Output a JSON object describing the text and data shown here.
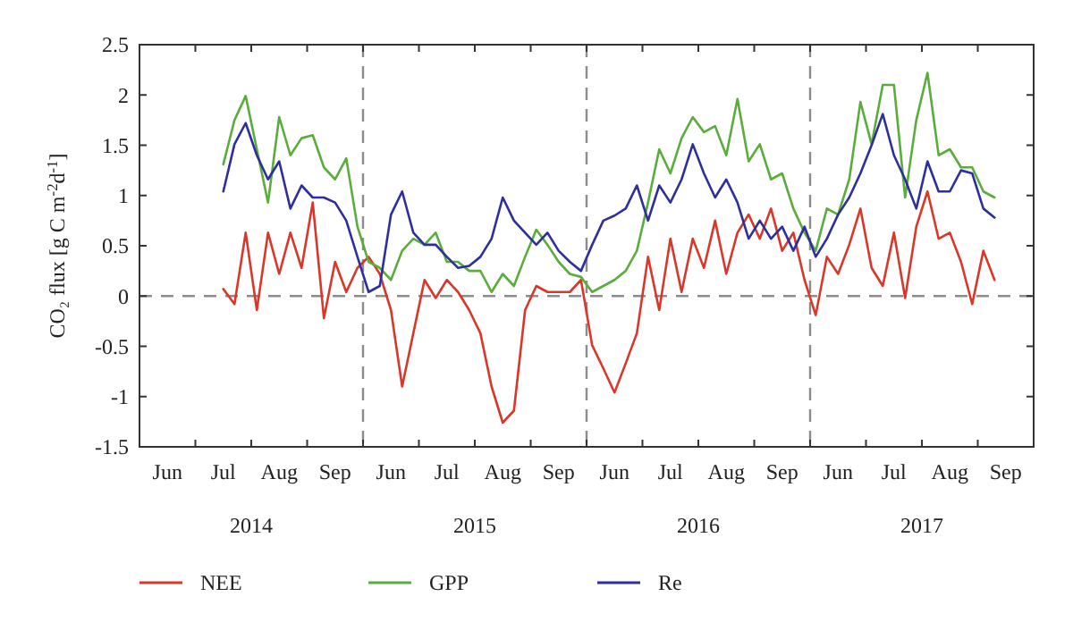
{
  "chart_data": {
    "type": "line",
    "ylabel": "CO₂ flux [g C m$^{-2}$d$^{-1}$]",
    "categories": [
      null,
      null,
      "Jun",
      null,
      null,
      null,
      null,
      "Jul",
      null,
      null,
      null,
      null,
      "Aug",
      null,
      null,
      null,
      null,
      "Sep",
      null,
      null,
      null,
      null,
      "Jun",
      null,
      null,
      null,
      null,
      "Jul",
      null,
      null,
      null,
      null,
      "Aug",
      null,
      null,
      null,
      null,
      "Sep",
      null,
      null,
      null,
      null,
      "Jun",
      null,
      null,
      null,
      null,
      "Jul",
      null,
      null,
      null,
      null,
      "Aug",
      null,
      null,
      null,
      null,
      "Sep",
      null,
      null,
      null,
      null,
      "Jun",
      null,
      null,
      null,
      null,
      "Jul",
      null,
      null,
      null,
      null,
      "Aug",
      null,
      null,
      null,
      null,
      "Sep",
      null,
      null
    ],
    "ylim": [
      -1.5,
      2.5
    ],
    "yticks": [
      -1.5,
      -1,
      -0.5,
      0,
      0.5,
      1,
      1.5,
      2,
      2.5
    ],
    "annotations": [
      "2014",
      "2015",
      "2016",
      "2017"
    ],
    "ref_lines": [
      {
        "axis": "y",
        "value": 0,
        "color": "#8c8c8c",
        "line_style": "dashed"
      }
    ],
    "legend": "bottom",
    "line_style": "solid",
    "series": [
      {
        "name": "NEE",
        "color": "#d8372a",
        "values": [
          null,
          null,
          null,
          null,
          null,
          null,
          null,
          0.07,
          -0.08,
          0.63,
          -0.14,
          0.63,
          0.22,
          0.63,
          0.28,
          0.93,
          -0.22,
          0.34,
          0.04,
          0.28,
          0.39,
          0.22,
          -0.14,
          -0.9,
          -0.37,
          0.16,
          -0.02,
          0.16,
          0.04,
          -0.14,
          -0.37,
          -0.9,
          -1.26,
          -1.14,
          -0.14,
          0.1,
          0.04,
          0.04,
          0.04,
          0.16,
          -0.49,
          -0.72,
          -0.96,
          -0.67,
          -0.37,
          0.39,
          -0.14,
          0.57,
          0.04,
          0.57,
          0.28,
          0.75,
          0.22,
          0.63,
          0.81,
          0.57,
          0.87,
          0.45,
          0.63,
          0.16,
          -0.19,
          0.39,
          0.22,
          0.51,
          0.87,
          0.28,
          0.1,
          0.63,
          -0.02,
          0.69,
          1.04,
          0.57,
          0.63,
          0.34,
          -0.08,
          0.45,
          0.16,
          null,
          null,
          null
        ]
      },
      {
        "name": "GPP",
        "color": "#5aad3c",
        "values": [
          null,
          null,
          null,
          null,
          null,
          null,
          null,
          1.31,
          1.75,
          1.99,
          1.46,
          0.93,
          1.78,
          1.4,
          1.57,
          1.6,
          1.28,
          1.16,
          1.37,
          0.69,
          0.34,
          0.28,
          0.16,
          0.45,
          0.57,
          0.51,
          0.63,
          0.34,
          0.34,
          0.25,
          0.25,
          0.04,
          0.22,
          0.1,
          0.39,
          0.66,
          0.51,
          0.34,
          0.22,
          0.19,
          0.04,
          0.1,
          0.16,
          0.25,
          0.45,
          0.93,
          1.46,
          1.22,
          1.57,
          1.78,
          1.63,
          1.69,
          1.4,
          1.96,
          1.34,
          1.51,
          1.16,
          1.22,
          0.87,
          0.63,
          0.45,
          0.87,
          0.81,
          1.16,
          1.93,
          1.51,
          2.1,
          2.1,
          0.98,
          1.75,
          2.22,
          1.4,
          1.46,
          1.28,
          1.28,
          1.04,
          0.98,
          null,
          null,
          null
        ]
      },
      {
        "name": "Re",
        "color": "#2e2f9c",
        "values": [
          null,
          null,
          null,
          null,
          null,
          null,
          null,
          1.04,
          1.51,
          1.72,
          1.4,
          1.16,
          1.34,
          0.87,
          1.1,
          0.98,
          0.98,
          0.93,
          0.75,
          0.39,
          0.04,
          0.1,
          0.81,
          1.04,
          0.63,
          0.51,
          0.51,
          0.39,
          0.28,
          0.3,
          0.39,
          0.57,
          0.98,
          0.75,
          0.63,
          0.51,
          0.63,
          0.45,
          0.34,
          0.25,
          0.51,
          0.75,
          0.8,
          0.87,
          1.1,
          0.75,
          1.1,
          0.93,
          1.16,
          1.51,
          1.22,
          0.98,
          1.16,
          0.93,
          0.57,
          0.75,
          0.57,
          0.69,
          0.45,
          0.69,
          0.39,
          0.57,
          0.81,
          0.98,
          1.22,
          1.5,
          1.81,
          1.4,
          1.16,
          0.87,
          1.34,
          1.04,
          1.04,
          1.25,
          1.22,
          0.87,
          0.78,
          null,
          null,
          null
        ]
      }
    ]
  }
}
